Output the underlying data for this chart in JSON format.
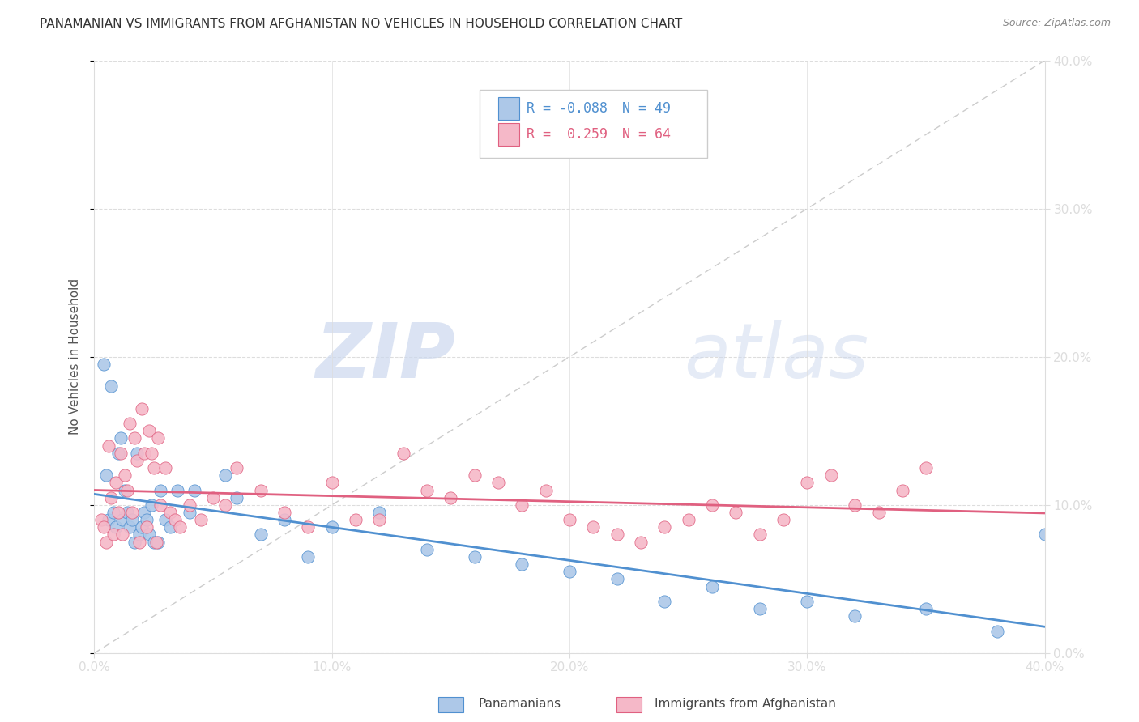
{
  "title": "PANAMANIAN VS IMMIGRANTS FROM AFGHANISTAN NO VEHICLES IN HOUSEHOLD CORRELATION CHART",
  "source": "Source: ZipAtlas.com",
  "ylabel": "No Vehicles in Household",
  "legend_label1": "Panamanians",
  "legend_label2": "Immigrants from Afghanistan",
  "R1": "-0.088",
  "N1": "49",
  "R2": "0.259",
  "N2": "64",
  "color1": "#adc8e8",
  "color2": "#f5b8c8",
  "line_color1": "#5090d0",
  "line_color2": "#e06080",
  "watermark_color": "#ccd8ee",
  "pan_x": [
    0.4,
    0.5,
    0.6,
    0.7,
    0.8,
    0.9,
    1.0,
    1.1,
    1.2,
    1.3,
    1.4,
    1.5,
    1.6,
    1.7,
    1.8,
    1.9,
    2.0,
    2.1,
    2.2,
    2.3,
    2.4,
    2.5,
    2.7,
    2.8,
    3.0,
    3.2,
    3.5,
    4.0,
    4.2,
    5.5,
    6.0,
    7.0,
    8.0,
    9.0,
    10.0,
    12.0,
    14.0,
    16.0,
    18.0,
    20.0,
    22.0,
    24.0,
    26.0,
    28.0,
    30.0,
    32.0,
    35.0,
    38.0,
    40.0
  ],
  "pan_y": [
    19.5,
    12.0,
    9.0,
    18.0,
    9.5,
    8.5,
    13.5,
    14.5,
    9.0,
    11.0,
    9.5,
    8.5,
    9.0,
    7.5,
    13.5,
    8.0,
    8.5,
    9.5,
    9.0,
    8.0,
    10.0,
    7.5,
    7.5,
    11.0,
    9.0,
    8.5,
    11.0,
    9.5,
    11.0,
    12.0,
    10.5,
    8.0,
    9.0,
    6.5,
    8.5,
    9.5,
    7.0,
    6.5,
    6.0,
    5.5,
    5.0,
    3.5,
    4.5,
    3.0,
    3.5,
    2.5,
    3.0,
    1.5,
    8.0
  ],
  "afg_x": [
    0.3,
    0.4,
    0.5,
    0.6,
    0.7,
    0.8,
    0.9,
    1.0,
    1.1,
    1.2,
    1.3,
    1.4,
    1.5,
    1.6,
    1.7,
    1.8,
    1.9,
    2.0,
    2.1,
    2.2,
    2.3,
    2.4,
    2.5,
    2.6,
    2.7,
    2.8,
    3.0,
    3.2,
    3.4,
    3.6,
    4.0,
    4.5,
    5.0,
    5.5,
    6.0,
    7.0,
    8.0,
    9.0,
    10.0,
    11.0,
    12.0,
    13.0,
    14.0,
    15.0,
    16.0,
    17.0,
    18.0,
    19.0,
    20.0,
    21.0,
    22.0,
    23.0,
    24.0,
    25.0,
    26.0,
    27.0,
    28.0,
    29.0,
    30.0,
    31.0,
    32.0,
    33.0,
    34.0,
    35.0
  ],
  "afg_y": [
    9.0,
    8.5,
    7.5,
    14.0,
    10.5,
    8.0,
    11.5,
    9.5,
    13.5,
    8.0,
    12.0,
    11.0,
    15.5,
    9.5,
    14.5,
    13.0,
    7.5,
    16.5,
    13.5,
    8.5,
    15.0,
    13.5,
    12.5,
    7.5,
    14.5,
    10.0,
    12.5,
    9.5,
    9.0,
    8.5,
    10.0,
    9.0,
    10.5,
    10.0,
    12.5,
    11.0,
    9.5,
    8.5,
    11.5,
    9.0,
    9.0,
    13.5,
    11.0,
    10.5,
    12.0,
    11.5,
    10.0,
    11.0,
    9.0,
    8.5,
    8.0,
    7.5,
    8.5,
    9.0,
    10.0,
    9.5,
    8.0,
    9.0,
    11.5,
    12.0,
    10.0,
    9.5,
    11.0,
    12.5
  ],
  "xlim": [
    0,
    40
  ],
  "ylim": [
    0,
    40
  ],
  "xtick_pct": [
    0,
    10,
    20,
    30,
    40
  ],
  "ytick_pct": [
    0,
    10,
    20,
    30,
    40
  ]
}
